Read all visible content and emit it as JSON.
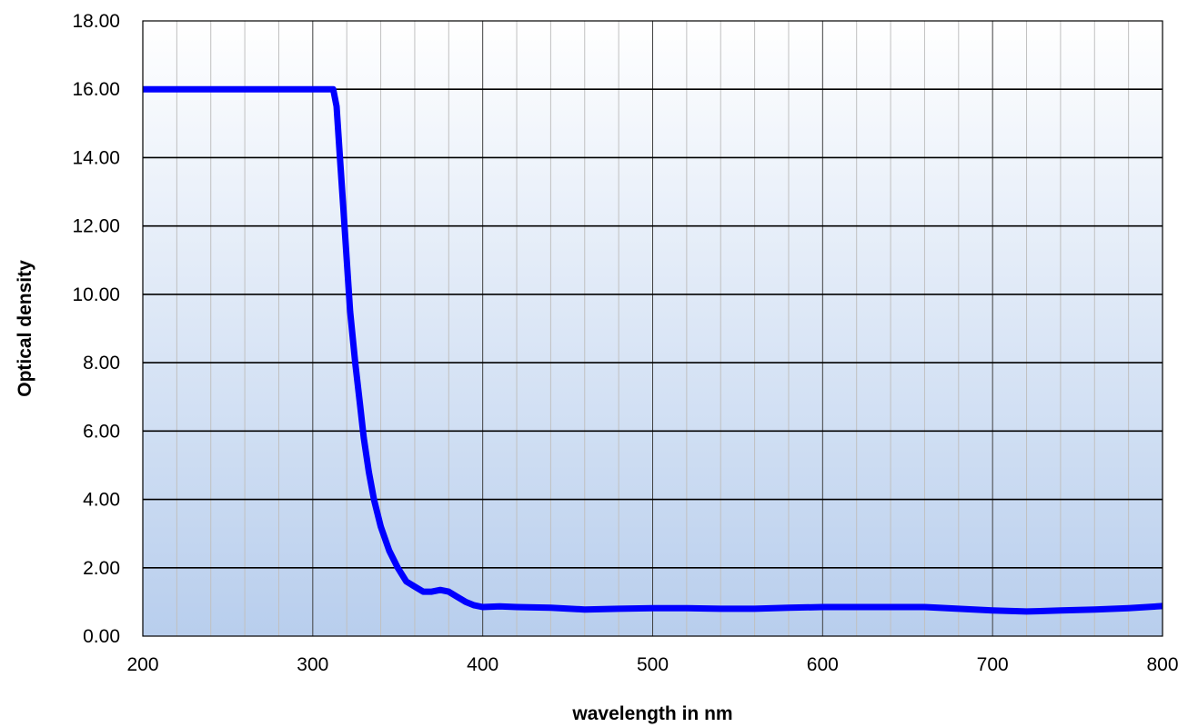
{
  "chart_data": {
    "type": "line",
    "title": "",
    "xlabel": "wavelength in nm",
    "ylabel": "Optical density",
    "xlim": [
      200,
      800
    ],
    "ylim": [
      0,
      18
    ],
    "x_major_ticks": [
      "200",
      "300",
      "400",
      "500",
      "600",
      "700",
      "800"
    ],
    "x_minor_step": 20,
    "y_ticks": [
      "0.00",
      "2.00",
      "4.00",
      "6.00",
      "8.00",
      "10.00",
      "12.00",
      "14.00",
      "16.00",
      "18.00"
    ],
    "grid": true,
    "legend": "none",
    "background_gradient": [
      "#ffffff",
      "#b8ceed"
    ],
    "series": [
      {
        "color": "#0000ff",
        "points": [
          [
            200,
            16.0
          ],
          [
            250,
            16.0
          ],
          [
            300,
            16.0
          ],
          [
            312,
            16.0
          ],
          [
            314,
            15.5
          ],
          [
            316,
            14.0
          ],
          [
            318,
            12.5
          ],
          [
            320,
            11.0
          ],
          [
            322,
            9.5
          ],
          [
            325,
            8.0
          ],
          [
            328,
            6.7
          ],
          [
            330,
            5.8
          ],
          [
            333,
            4.8
          ],
          [
            336,
            4.0
          ],
          [
            340,
            3.2
          ],
          [
            345,
            2.5
          ],
          [
            350,
            2.0
          ],
          [
            355,
            1.6
          ],
          [
            360,
            1.45
          ],
          [
            365,
            1.3
          ],
          [
            370,
            1.3
          ],
          [
            375,
            1.35
          ],
          [
            380,
            1.3
          ],
          [
            385,
            1.15
          ],
          [
            390,
            1.0
          ],
          [
            395,
            0.9
          ],
          [
            400,
            0.85
          ],
          [
            410,
            0.87
          ],
          [
            420,
            0.85
          ],
          [
            440,
            0.83
          ],
          [
            460,
            0.78
          ],
          [
            480,
            0.8
          ],
          [
            500,
            0.82
          ],
          [
            520,
            0.82
          ],
          [
            540,
            0.8
          ],
          [
            560,
            0.8
          ],
          [
            580,
            0.83
          ],
          [
            600,
            0.85
          ],
          [
            620,
            0.85
          ],
          [
            640,
            0.85
          ],
          [
            660,
            0.85
          ],
          [
            680,
            0.8
          ],
          [
            700,
            0.75
          ],
          [
            720,
            0.72
          ],
          [
            740,
            0.75
          ],
          [
            760,
            0.78
          ],
          [
            780,
            0.82
          ],
          [
            800,
            0.88
          ]
        ]
      }
    ]
  }
}
